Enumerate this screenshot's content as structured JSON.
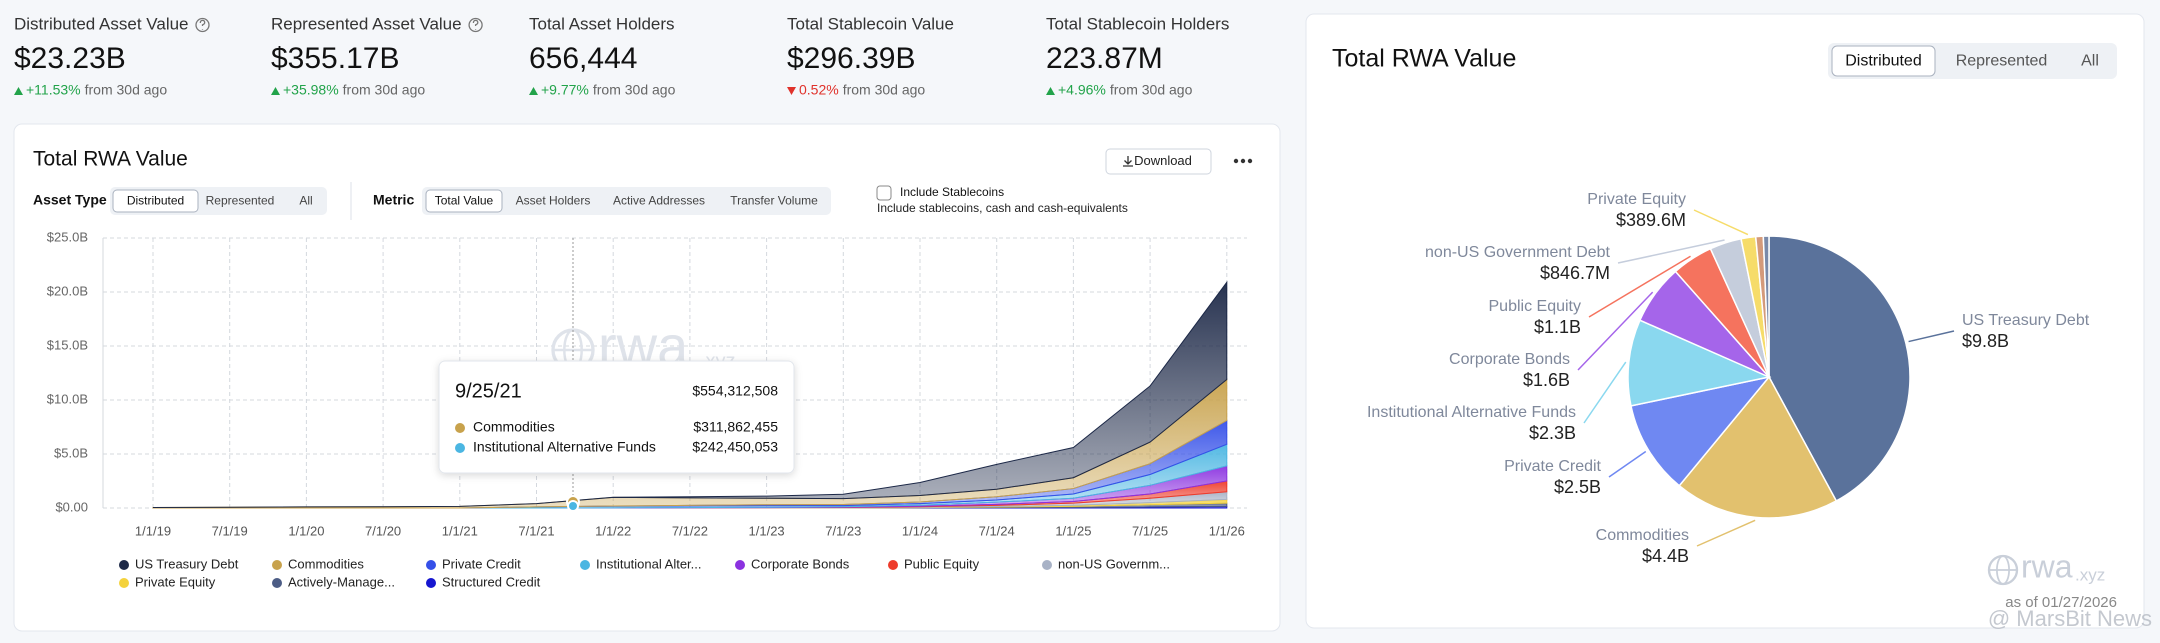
{
  "stats": [
    {
      "label": "Distributed Asset Value",
      "value": "$23.23B",
      "change": "+11.53%",
      "direction": "up",
      "suffix": "from 30d ago",
      "info": true
    },
    {
      "label": "Represented Asset Value",
      "value": "$355.17B",
      "change": "+35.98%",
      "direction": "up",
      "suffix": "from 30d ago",
      "info": true
    },
    {
      "label": "Total Asset Holders",
      "value": "656,444",
      "change": "+9.77%",
      "direction": "up",
      "suffix": "from 30d ago",
      "info": false
    },
    {
      "label": "Total Stablecoin Value",
      "value": "$296.39B",
      "change": "0.52%",
      "direction": "down",
      "suffix": "from 30d ago",
      "info": false
    },
    {
      "label": "Total Stablecoin Holders",
      "value": "223.87M",
      "change": "+4.96%",
      "direction": "up",
      "suffix": "from 30d ago",
      "info": false
    }
  ],
  "left_panel": {
    "download": "Download",
    "asset_type": {
      "label": "Asset Type",
      "options": [
        "Distributed",
        "Represented",
        "All"
      ],
      "selected": 0
    },
    "metric": {
      "label": "Metric",
      "options": [
        "Total Value",
        "Asset Holders",
        "Active Addresses",
        "Transfer Volume"
      ],
      "selected": 0
    },
    "checkbox": {
      "label": "Include Stablecoins",
      "note": "Include stablecoins, cash and cash-equivalents",
      "checked": false
    },
    "watermark": {
      "text": "rwa",
      "suffix": ".xyz"
    },
    "tooltip": {
      "date": "9/25/21",
      "total": "$554,312,508",
      "rows": [
        {
          "name": "Commodities",
          "value": "$311,862,455",
          "color": "#c8a24c"
        },
        {
          "name": "Institutional Alternative Funds",
          "value": "$242,450,053",
          "color": "#4bb6e2"
        }
      ]
    }
  },
  "right_panel": {
    "tabs": [
      "Distributed",
      "Represented",
      "All"
    ],
    "selected": 0,
    "watermark": {
      "text": "rwa",
      "suffix": ".xyz"
    },
    "as_of": "as of 01/27/2026"
  },
  "overlay": "@ MarsBit News",
  "chart_data": [
    {
      "type": "area",
      "stacked": true,
      "title": "Total RWA Value",
      "categories": [
        "1/1/19",
        "7/1/19",
        "1/1/20",
        "7/1/20",
        "1/1/21",
        "7/1/21",
        "1/1/22",
        "7/1/22",
        "1/1/23",
        "7/1/23",
        "1/1/24",
        "7/1/24",
        "1/1/25",
        "7/1/25",
        "1/1/26"
      ],
      "series": [
        {
          "name": "US Treasury Debt",
          "color": "#1c2847",
          "values": [
            0,
            0,
            0,
            0,
            0,
            0,
            0.02,
            0.1,
            0.2,
            0.4,
            1.2,
            2.3,
            2.8,
            5.2,
            9.0
          ]
        },
        {
          "name": "Commodities",
          "color": "#c8a24c",
          "values": [
            0.05,
            0.07,
            0.1,
            0.12,
            0.15,
            0.3,
            0.8,
            0.7,
            0.6,
            0.55,
            0.6,
            0.7,
            1.0,
            2.0,
            3.8
          ]
        },
        {
          "name": "Private Credit",
          "color": "#3550e8",
          "values": [
            0,
            0,
            0,
            0,
            0,
            0,
            0.02,
            0.05,
            0.08,
            0.1,
            0.15,
            0.3,
            0.5,
            1.0,
            2.2
          ]
        },
        {
          "name": "Institutional Alter...",
          "color": "#4bb6e2",
          "values": [
            0,
            0,
            0,
            0,
            0,
            0.1,
            0.15,
            0.15,
            0.15,
            0.1,
            0.15,
            0.2,
            0.4,
            1.0,
            2.0
          ]
        },
        {
          "name": "Corporate Bonds",
          "color": "#8b32e0",
          "values": [
            0,
            0,
            0,
            0,
            0,
            0,
            0.01,
            0.02,
            0.03,
            0.05,
            0.1,
            0.2,
            0.3,
            0.8,
            1.4
          ]
        },
        {
          "name": "Public Equity",
          "color": "#ee3b2b",
          "values": [
            0,
            0,
            0,
            0,
            0,
            0,
            0,
            0,
            0.01,
            0.02,
            0.05,
            0.1,
            0.15,
            0.4,
            1.0
          ]
        },
        {
          "name": "non-US Governm...",
          "color": "#a8b2c6",
          "values": [
            0,
            0,
            0,
            0,
            0,
            0,
            0,
            0.02,
            0.02,
            0.03,
            0.05,
            0.1,
            0.2,
            0.4,
            0.7
          ]
        },
        {
          "name": "Private Equity",
          "color": "#f4d23c",
          "values": [
            0,
            0,
            0,
            0,
            0,
            0,
            0,
            0,
            0.01,
            0.01,
            0.02,
            0.05,
            0.1,
            0.2,
            0.35
          ]
        },
        {
          "name": "Actively-Manage...",
          "color": "#4c5c85",
          "values": [
            0,
            0,
            0,
            0,
            0,
            0,
            0,
            0,
            0,
            0,
            0.02,
            0.05,
            0.1,
            0.2,
            0.3
          ]
        },
        {
          "name": "Structured Credit",
          "color": "#1616d0",
          "values": [
            0,
            0,
            0,
            0,
            0,
            0,
            0,
            0,
            0,
            0.01,
            0.02,
            0.04,
            0.05,
            0.1,
            0.15
          ]
        }
      ],
      "ylim": [
        0,
        25
      ],
      "yticks": [
        {
          "value": 0,
          "label": "$0.00"
        },
        {
          "value": 5,
          "label": "$5.0B"
        },
        {
          "value": 10,
          "label": "$10.0B"
        },
        {
          "value": 15,
          "label": "$15.0B"
        },
        {
          "value": 20,
          "label": "$20.0B"
        },
        {
          "value": 25,
          "label": "$25.0B"
        }
      ],
      "grid": true
    },
    {
      "type": "pie",
      "title": "Total RWA Value",
      "categories": [
        "US Treasury Debt",
        "Commodities",
        "Private Credit",
        "Institutional Alternative Funds",
        "Corporate Bonds",
        "Public Equity",
        "non-US Government Debt",
        "Private Equity",
        null,
        null
      ],
      "values": [
        9.8,
        4.4,
        2.5,
        2.3,
        1.6,
        1.1,
        0.8467,
        0.3896,
        0.2,
        0.15
      ],
      "value_labels": [
        "$9.8B",
        "$4.4B",
        "$2.5B",
        "$2.3B",
        "$1.6B",
        "$1.1B",
        "$846.7M",
        "$389.6M",
        null,
        null
      ],
      "colors": [
        "#5a729b",
        "#e2c16e",
        "#6f88f2",
        "#8ad8ef",
        "#a565ea",
        "#f5735e",
        "#c5cddc",
        "#f6dc6a",
        "#d49a7a",
        "#7a8aa9"
      ]
    }
  ]
}
